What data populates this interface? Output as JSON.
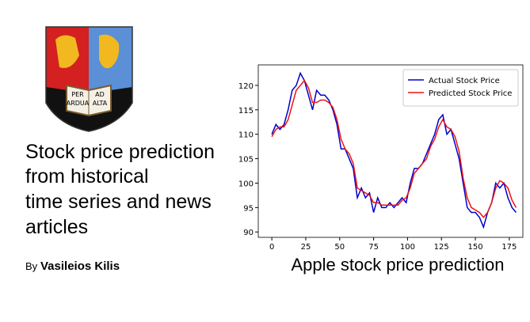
{
  "crest": {
    "motto": [
      "PER",
      "ARDUA",
      "AD",
      "ALTA"
    ]
  },
  "header": {
    "title_lines": [
      "Stock price prediction",
      "from historical",
      "time series and news",
      "articles"
    ]
  },
  "author": {
    "prefix": "By",
    "name": "Vasileios Kilis"
  },
  "chart_data": {
    "type": "line",
    "x": [
      0,
      3,
      6,
      9,
      12,
      15,
      18,
      21,
      24,
      27,
      30,
      33,
      36,
      39,
      42,
      45,
      48,
      51,
      54,
      57,
      60,
      63,
      66,
      69,
      72,
      75,
      78,
      81,
      84,
      87,
      90,
      93,
      96,
      99,
      102,
      105,
      108,
      111,
      114,
      117,
      120,
      123,
      126,
      129,
      132,
      135,
      138,
      141,
      144,
      147,
      150,
      153,
      156,
      159,
      162,
      165,
      168,
      171,
      174,
      177,
      180
    ],
    "series": [
      {
        "name": "Actual Stock Price",
        "color": "#0000cc",
        "values": [
          110,
          112,
          111,
          112,
          115,
          119,
          120,
          122.5,
          121,
          118,
          115,
          119,
          118,
          118,
          117,
          115,
          112,
          107,
          107,
          105,
          103,
          97,
          99,
          97,
          98,
          94,
          97,
          95,
          95,
          96,
          95,
          96,
          97,
          96,
          100,
          103,
          103,
          104,
          106,
          108,
          110,
          113,
          114,
          110,
          111,
          108,
          105,
          100,
          95,
          94,
          94,
          93,
          91,
          94,
          96,
          100,
          99,
          100,
          97,
          95,
          94
        ]
      },
      {
        "name": "Predicted Stock Price",
        "color": "#ee1111",
        "values": [
          109.5,
          111,
          111.5,
          111.5,
          113,
          116,
          119,
          120,
          121,
          119.5,
          116.5,
          116.5,
          117,
          117,
          116.5,
          115.5,
          113,
          109,
          107,
          106,
          104,
          99,
          98.5,
          98,
          97.5,
          96,
          96,
          95.5,
          95.5,
          95.5,
          95.5,
          95.5,
          96.5,
          97,
          99,
          102,
          103,
          104,
          105,
          107.5,
          109,
          111.5,
          113,
          111.5,
          111,
          109.5,
          106.5,
          101,
          97,
          95,
          94.5,
          94,
          93,
          94,
          96,
          99,
          100.5,
          100,
          99,
          96.5,
          95
        ]
      }
    ],
    "xlim": [
      -10,
      185
    ],
    "ylim": [
      88.9,
      124.2
    ],
    "xticks": [
      0,
      25,
      50,
      75,
      100,
      125,
      150,
      175
    ],
    "yticks": [
      90,
      95,
      100,
      105,
      110,
      115,
      120
    ],
    "legend": "upper right"
  },
  "caption": "Apple stock price prediction"
}
